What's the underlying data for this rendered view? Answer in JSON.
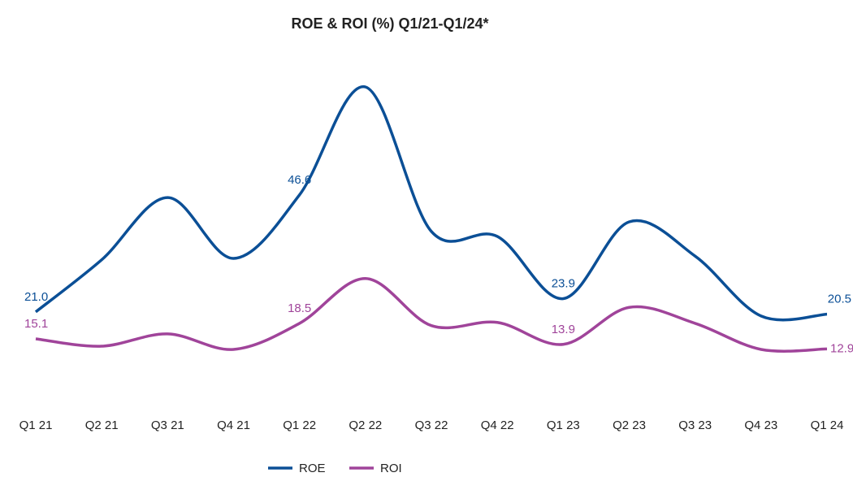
{
  "chart_data": {
    "type": "line",
    "title": "ROE & ROI (%) Q1/21-Q1/24*",
    "categories": [
      "Q1 21",
      "Q2 21",
      "Q3 21",
      "Q4 21",
      "Q1 22",
      "Q2 22",
      "Q3 22",
      "Q4 22",
      "Q1 23",
      "Q2 23",
      "Q3 23",
      "Q4 23",
      "Q1 24"
    ],
    "series": [
      {
        "name": "ROE",
        "color": "#0b4f96",
        "values": [
          21.0,
          32.4,
          46.0,
          32.7,
          46.6,
          70.2,
          38.6,
          37.5,
          23.9,
          40.7,
          33.2,
          20.1,
          20.5
        ],
        "value_labels": [
          "21.0",
          null,
          null,
          null,
          "46.6",
          null,
          null,
          null,
          "23.9",
          null,
          null,
          null,
          "20.5"
        ]
      },
      {
        "name": "ROI",
        "color": "#a0449a",
        "values": [
          15.1,
          13.5,
          16.2,
          12.8,
          18.5,
          28.3,
          18.0,
          18.7,
          13.9,
          22.0,
          18.5,
          12.8,
          12.9
        ],
        "value_labels": [
          "15.1",
          null,
          null,
          null,
          "18.5",
          null,
          null,
          null,
          "13.9",
          null,
          null,
          null,
          "12.9"
        ]
      }
    ],
    "legend": "bottom"
  }
}
